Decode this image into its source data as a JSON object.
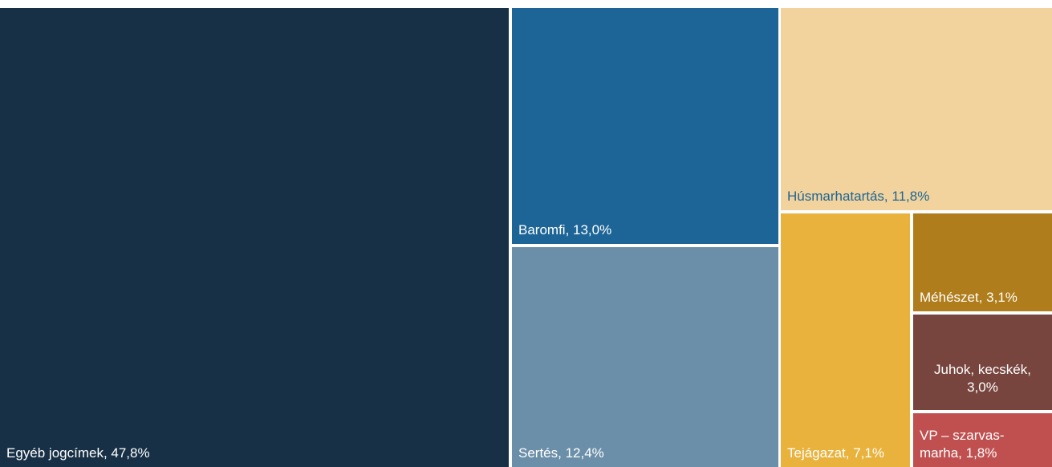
{
  "chart_data": {
    "type": "treemap",
    "title": "",
    "unit": "%",
    "items": [
      {
        "label": "Egyéb jogcímek, 47,8%",
        "category": "Egyéb jogcímek",
        "value": 47.8,
        "color": "#173045",
        "text_color": "#ffffff"
      },
      {
        "label": "Baromfi, 13,0%",
        "category": "Baromfi",
        "value": 13.0,
        "color": "#1d6596",
        "text_color": "#ffffff"
      },
      {
        "label": "Sertés, 12,4%",
        "category": "Sertés",
        "value": 12.4,
        "color": "#6b8fa8",
        "text_color": "#ffffff"
      },
      {
        "label": "Húsmarhatartás, 11,8%",
        "category": "Húsmarhatartás",
        "value": 11.8,
        "color": "#f2d39d",
        "text_color": "#1d6596"
      },
      {
        "label": "Tejágazat, 7,1%",
        "category": "Tejágazat",
        "value": 7.1,
        "color": "#e8b23d",
        "text_color": "#ffffff"
      },
      {
        "label": "Méhészet, 3,1%",
        "category": "Méhészet",
        "value": 3.1,
        "color": "#af7d1b",
        "text_color": "#ffffff"
      },
      {
        "label": "Juhok, kecskék,\n3,0%",
        "category": "Juhok, kecskék",
        "value": 3.0,
        "color": "#77453e",
        "text_color": "#ffffff"
      },
      {
        "label": "VP – szarvas-\nmarha, 1,8%",
        "category": "VP – szarvasmarha",
        "value": 1.8,
        "color": "#c05050",
        "text_color": "#ffffff"
      }
    ]
  }
}
